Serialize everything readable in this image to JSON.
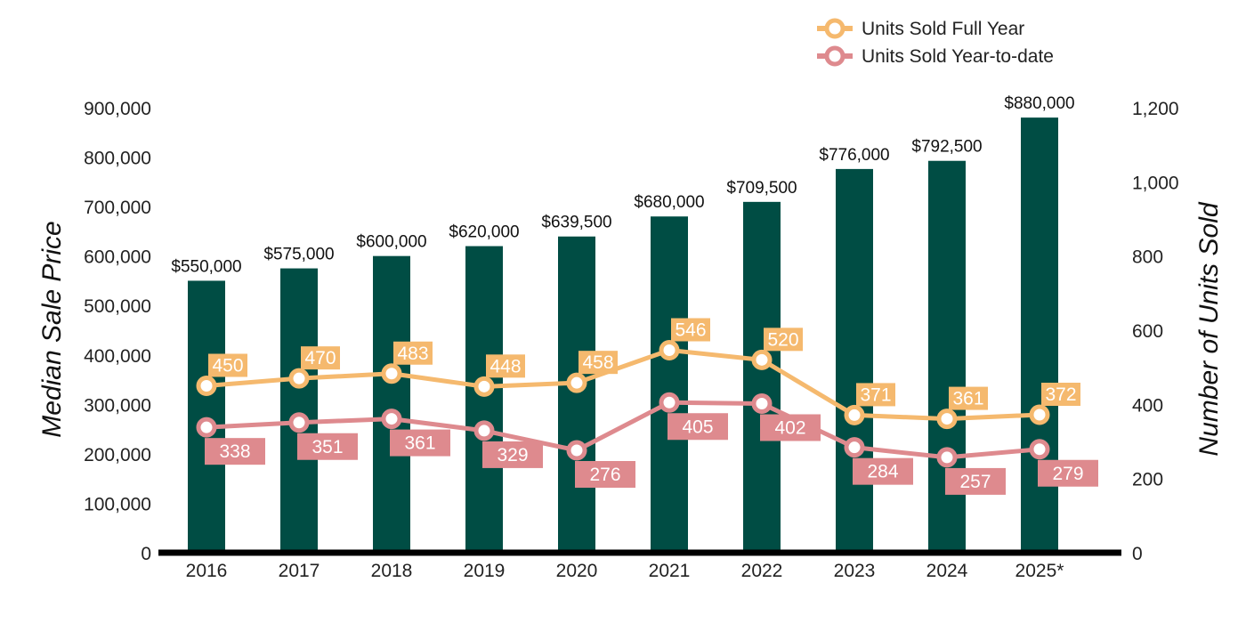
{
  "chart_data": {
    "type": "bar",
    "categories": [
      "2016",
      "2017",
      "2018",
      "2019",
      "2020",
      "2021",
      "2022",
      "2023",
      "2024",
      "2025*"
    ],
    "bar_series": {
      "values": [
        550000,
        575000,
        600000,
        620000,
        639500,
        680000,
        709500,
        776000,
        792500,
        880000
      ],
      "labels": [
        "$550,000",
        "$575,000",
        "$600,000",
        "$620,000",
        "$639,500",
        "$680,000",
        "$709,500",
        "$776,000",
        "$792,500",
        "$880,000"
      ],
      "color": "#004d44"
    },
    "line_series": [
      {
        "name": "Units Sold Full Year",
        "values": [
          450,
          470,
          483,
          448,
          458,
          546,
          520,
          371,
          361,
          372
        ],
        "color": "#f5b96e"
      },
      {
        "name": "Units Sold Year-to-date",
        "values": [
          338,
          351,
          361,
          329,
          276,
          405,
          402,
          284,
          257,
          279
        ],
        "color": "#de8a8e"
      }
    ],
    "ylabel": "Median Sale Price",
    "y2label": "Number of Units Sold",
    "ylim": [
      0,
      900000
    ],
    "y2lim": [
      0,
      1200
    ],
    "yticks": [
      "0",
      "100,000",
      "200,000",
      "300,000",
      "400,000",
      "500,000",
      "600,000",
      "700,000",
      "800,000",
      "900,000"
    ],
    "y2ticks": [
      "0",
      "200",
      "400",
      "600",
      "800",
      "1,000",
      "1,200"
    ],
    "legend_position": "top-right",
    "grid": false
  }
}
